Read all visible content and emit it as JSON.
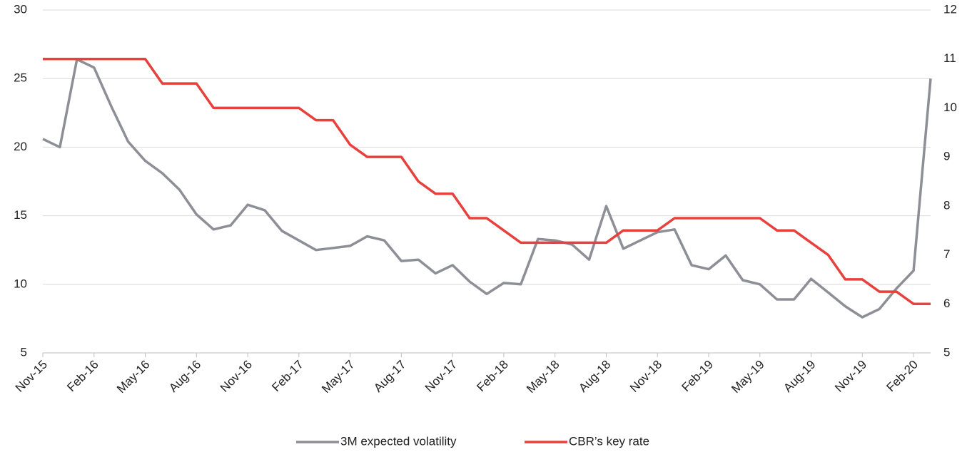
{
  "chart_data": {
    "type": "line",
    "categories": [
      "Nov-15",
      null,
      null,
      "Feb-16",
      null,
      null,
      "May-16",
      null,
      null,
      "Aug-16",
      null,
      null,
      "Nov-16",
      null,
      null,
      "Feb-17",
      null,
      null,
      "May-17",
      null,
      null,
      "Aug-17",
      null,
      null,
      "Nov-17",
      null,
      null,
      "Feb-18",
      null,
      null,
      "May-18",
      null,
      null,
      "Aug-18",
      null,
      null,
      "Nov-18",
      null,
      null,
      "Feb-19",
      null,
      null,
      "May-19",
      null,
      null,
      "Aug-19",
      null,
      null,
      "Nov-19",
      null,
      null,
      "Feb-20",
      null
    ],
    "series": [
      {
        "name": "3M expected volatility",
        "color": "#8e8e96",
        "axis": "y",
        "values": [
          20.6,
          20.0,
          26.4,
          25.8,
          23.0,
          20.4,
          19.0,
          18.1,
          16.9,
          15.1,
          14.0,
          14.3,
          15.8,
          15.4,
          13.9,
          13.2,
          12.5,
          12.65,
          12.8,
          13.5,
          13.2,
          11.7,
          11.8,
          10.8,
          11.4,
          10.2,
          9.3,
          10.1,
          10.0,
          13.3,
          13.2,
          12.9,
          11.8,
          15.7,
          12.6,
          13.2,
          13.8,
          14.0,
          11.4,
          11.1,
          12.1,
          10.3,
          10.0,
          8.9,
          8.9,
          10.4,
          9.4,
          8.4,
          7.6,
          8.2,
          9.7,
          11.0,
          25.0
        ]
      },
      {
        "name": "CBR’s key rate",
        "color": "#e8403c",
        "axis": "y2",
        "values": [
          11,
          11,
          11,
          11,
          11,
          11,
          11,
          10.5,
          10.5,
          10.5,
          10,
          10,
          10,
          10,
          10,
          10,
          9.75,
          9.75,
          9.25,
          9,
          9,
          9,
          8.5,
          8.25,
          8.25,
          7.75,
          7.75,
          7.5,
          7.25,
          7.25,
          7.25,
          7.25,
          7.25,
          7.25,
          7.5,
          7.5,
          7.5,
          7.75,
          7.75,
          7.75,
          7.75,
          7.75,
          7.75,
          7.5,
          7.5,
          7.25,
          7,
          6.5,
          6.5,
          6.25,
          6.25,
          6,
          6
        ]
      }
    ],
    "ylim": [
      5,
      30
    ],
    "yticks": [
      5,
      10,
      15,
      20,
      25,
      30
    ],
    "y2lim": [
      5,
      12
    ],
    "y2ticks": [
      5,
      6,
      7,
      8,
      9,
      10,
      11,
      12
    ],
    "grid": true,
    "legend": "bottom"
  }
}
